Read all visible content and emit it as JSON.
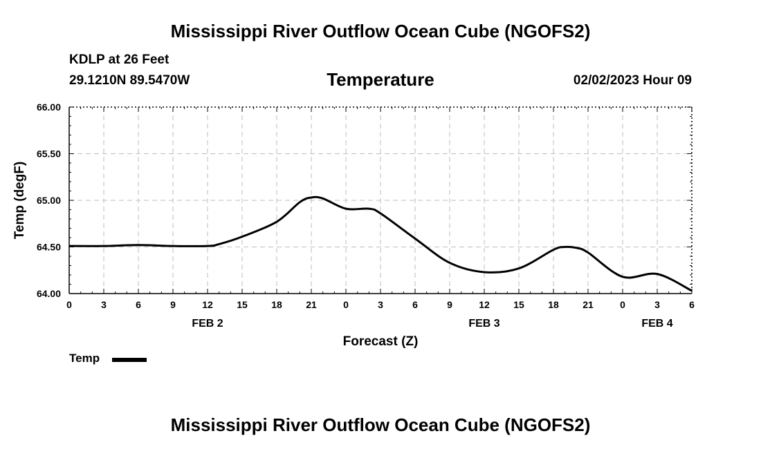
{
  "header": {
    "title": "Mississippi River Outflow Ocean Cube (NGOFS2)",
    "station": "KDLP at 26 Feet",
    "coords": "29.1210N  89.5470W",
    "datetime": "02/02/2023 Hour 09",
    "footer_title": "Mississippi River Outflow Ocean Cube (NGOFS2)"
  },
  "legend": {
    "label": "Temp",
    "line_color": "#000000"
  },
  "chart_data": {
    "type": "line",
    "title": "Temperature",
    "xlabel": "Forecast (Z)",
    "ylabel": "Temp (degF)",
    "ylim": [
      64.0,
      66.0
    ],
    "xlim": [
      0,
      54
    ],
    "y_ticks": [
      "66.00",
      "65.50",
      "65.00",
      "64.50",
      "64.00"
    ],
    "y_tick_values": [
      66.0,
      65.5,
      65.0,
      64.5,
      64.0
    ],
    "x_tick_labels": [
      "0",
      "3",
      "6",
      "9",
      "12",
      "15",
      "18",
      "21",
      "0",
      "3",
      "6",
      "9",
      "12",
      "15",
      "18",
      "21",
      "0",
      "3",
      "6"
    ],
    "date_labels": [
      {
        "label": "FEB 2",
        "hour": 12
      },
      {
        "label": "FEB 3",
        "hour": 36
      },
      {
        "label": "FEB 4",
        "hour": 51
      }
    ],
    "grid": true,
    "series": [
      {
        "name": "Temp",
        "color": "#000000",
        "x": [
          0,
          3,
          6,
          9,
          12,
          13,
          15,
          18,
          20,
          21,
          22,
          24,
          26,
          27,
          30,
          33,
          36,
          39,
          42,
          43,
          44,
          45,
          48,
          51,
          54
        ],
        "values": [
          64.51,
          64.51,
          64.52,
          64.51,
          64.51,
          64.53,
          64.61,
          64.77,
          64.98,
          65.03,
          65.02,
          64.91,
          64.91,
          64.86,
          64.59,
          64.33,
          64.23,
          64.27,
          64.47,
          64.5,
          64.49,
          64.44,
          64.18,
          64.21,
          64.03
        ]
      }
    ]
  }
}
